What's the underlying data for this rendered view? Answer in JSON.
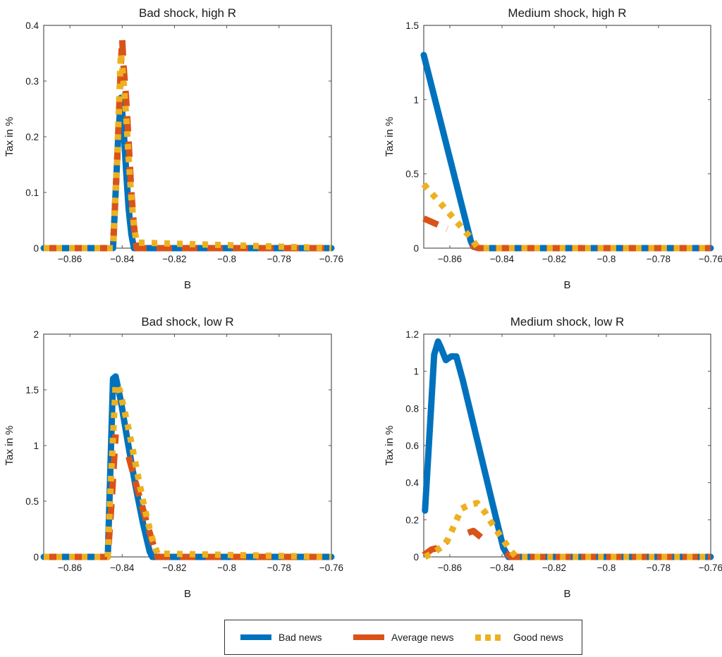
{
  "colors": {
    "bad": "#0072BD",
    "average": "#D95319",
    "good": "#EDB120",
    "axis": "#555555"
  },
  "legend": {
    "items": [
      {
        "label": "Bad news",
        "key": "bad",
        "style": "solid"
      },
      {
        "label": "Average news",
        "key": "average",
        "style": "dashed"
      },
      {
        "label": "Good news",
        "key": "good",
        "style": "dotted"
      }
    ]
  },
  "chart_data": [
    {
      "type": "line",
      "title": "Bad shock, high R",
      "xlabel": "B",
      "ylabel": "Tax in %",
      "xlim": [
        -0.87,
        -0.76
      ],
      "ylim": [
        0,
        0.4
      ],
      "xticks": [
        -0.86,
        -0.84,
        -0.82,
        -0.8,
        -0.78,
        -0.76
      ],
      "xtick_labels": [
        "−0.86",
        "−0.84",
        "−0.82",
        "−0.8",
        "−0.78",
        "−0.76"
      ],
      "yticks": [
        0,
        0.1,
        0.2,
        0.3,
        0.4
      ],
      "ytick_labels": [
        "0",
        "0.1",
        "0.2",
        "0.3",
        "0.4"
      ],
      "series": [
        {
          "name": "Bad news",
          "key": "bad",
          "x": [
            -0.87,
            -0.8435,
            -0.8415,
            -0.8405,
            -0.8395,
            -0.8385,
            -0.8375,
            -0.8365,
            -0.8355,
            -0.76
          ],
          "y": [
            0,
            0,
            0.2,
            0.27,
            0.22,
            0.14,
            0.07,
            0.025,
            0,
            0
          ]
        },
        {
          "name": "Average news",
          "key": "average",
          "x": [
            -0.87,
            -0.8435,
            -0.842,
            -0.8405,
            -0.84,
            -0.8395,
            -0.8385,
            -0.8375,
            -0.8365,
            -0.8355,
            -0.8345,
            -0.76
          ],
          "y": [
            0,
            0,
            0.15,
            0.33,
            0.375,
            0.33,
            0.27,
            0.19,
            0.1,
            0.04,
            0,
            0
          ]
        },
        {
          "name": "Good news",
          "key": "good",
          "x": [
            -0.87,
            -0.8435,
            -0.842,
            -0.8405,
            -0.8395,
            -0.8385,
            -0.8375,
            -0.8365,
            -0.8355,
            -0.8345,
            -0.76
          ],
          "y": [
            0,
            0,
            0.15,
            0.35,
            0.3,
            0.24,
            0.16,
            0.09,
            0.04,
            0.01,
            0
          ]
        }
      ]
    },
    {
      "type": "line",
      "title": "Medium shock, high R",
      "xlabel": "B",
      "ylabel": "Tax in %",
      "xlim": [
        -0.87,
        -0.76
      ],
      "ylim": [
        0,
        1.5
      ],
      "xticks": [
        -0.86,
        -0.84,
        -0.82,
        -0.8,
        -0.78,
        -0.76
      ],
      "xtick_labels": [
        "−0.86",
        "−0.84",
        "−0.82",
        "−0.8",
        "−0.78",
        "−0.76"
      ],
      "yticks": [
        0,
        0.5,
        1,
        1.5
      ],
      "ytick_labels": [
        "0",
        "0.5",
        "1",
        "1.5"
      ],
      "series": [
        {
          "name": "Bad news",
          "key": "bad",
          "x": [
            -0.87,
            -0.852,
            -0.851,
            -0.849,
            -0.76
          ],
          "y": [
            1.3,
            0.05,
            0.01,
            0,
            0
          ]
        },
        {
          "name": "Average news",
          "key": "average",
          "x": [
            -0.87,
            -0.861,
            null,
            -0.852,
            -0.849,
            -0.76
          ],
          "y": [
            0.2,
            0.13,
            null,
            0.02,
            0,
            0
          ]
        },
        {
          "name": "Good news",
          "key": "good",
          "x": [
            -0.87,
            -0.8525,
            -0.8495,
            -0.848,
            -0.76
          ],
          "y": [
            0.43,
            0.08,
            0.01,
            0,
            0
          ]
        }
      ]
    },
    {
      "type": "line",
      "title": "Bad shock, low R",
      "xlabel": "B",
      "ylabel": "Tax in %",
      "xlim": [
        -0.87,
        -0.76
      ],
      "ylim": [
        0,
        2
      ],
      "xticks": [
        -0.86,
        -0.84,
        -0.82,
        -0.8,
        -0.78,
        -0.76
      ],
      "xtick_labels": [
        "−0.86",
        "−0.84",
        "−0.82",
        "−0.8",
        "−0.78",
        "−0.76"
      ],
      "yticks": [
        0,
        0.5,
        1,
        1.5,
        2
      ],
      "ytick_labels": [
        "0",
        "0.5",
        "1",
        "1.5",
        "2"
      ],
      "series": [
        {
          "name": "Bad news",
          "key": "bad",
          "x": [
            -0.87,
            -0.8455,
            -0.8435,
            -0.8425,
            -0.8405,
            -0.838,
            -0.835,
            -0.832,
            -0.8295,
            -0.8285,
            -0.76
          ],
          "y": [
            0,
            0,
            1.6,
            1.62,
            1.4,
            1.05,
            0.65,
            0.3,
            0.05,
            0,
            0
          ]
        },
        {
          "name": "Average news",
          "key": "average",
          "x": [
            -0.87,
            -0.8455,
            -0.844,
            -0.8425,
            null,
            -0.8375,
            -0.8335,
            -0.8305,
            -0.828,
            -0.8265,
            -0.76
          ],
          "y": [
            0,
            0,
            0.5,
            1.1,
            null,
            0.9,
            0.55,
            0.3,
            0.1,
            0,
            0
          ]
        },
        {
          "name": "Good news",
          "key": "good",
          "x": [
            -0.87,
            -0.8455,
            -0.8445,
            -0.8425,
            -0.841,
            -0.838,
            -0.835,
            -0.832,
            -0.829,
            -0.8265,
            -0.76
          ],
          "y": [
            0,
            0,
            0.6,
            1.55,
            1.5,
            1.2,
            0.85,
            0.5,
            0.2,
            0.03,
            0
          ]
        }
      ]
    },
    {
      "type": "line",
      "title": "Medium shock, low R",
      "xlabel": "B",
      "ylabel": "Tax in %",
      "xlim": [
        -0.87,
        -0.76
      ],
      "ylim": [
        0,
        1.2
      ],
      "xticks": [
        -0.86,
        -0.84,
        -0.82,
        -0.8,
        -0.78,
        -0.76
      ],
      "xtick_labels": [
        "−0.86",
        "−0.84",
        "−0.82",
        "−0.8",
        "−0.78",
        "−0.76"
      ],
      "yticks": [
        0,
        0.2,
        0.4,
        0.6,
        0.8,
        1,
        1.2
      ],
      "ytick_labels": [
        "0",
        "0.2",
        "0.4",
        "0.6",
        "0.8",
        "1",
        "1.2"
      ],
      "series": [
        {
          "name": "Bad news",
          "key": "bad",
          "x": [
            -0.8695,
            -0.866,
            -0.8645,
            -0.8635,
            -0.8615,
            -0.8595,
            -0.8575,
            -0.855,
            -0.849,
            -0.843,
            -0.8395,
            -0.8375,
            -0.76
          ],
          "y": [
            0.25,
            1.09,
            1.16,
            1.13,
            1.06,
            1.08,
            1.08,
            0.95,
            0.6,
            0.25,
            0.05,
            0,
            0
          ]
        },
        {
          "name": "Average news",
          "key": "average",
          "x": [
            -0.87,
            -0.867,
            -0.864,
            -0.8615,
            null,
            -0.853,
            -0.851,
            -0.8475,
            null,
            -0.8385,
            -0.8365,
            -0.76
          ],
          "y": [
            0.01,
            0.04,
            0.05,
            0.08,
            null,
            0.13,
            0.14,
            0.1,
            null,
            0.02,
            0,
            0
          ]
        },
        {
          "name": "Good news",
          "key": "good",
          "x": [
            -0.8695,
            -0.8665,
            -0.8615,
            -0.858,
            -0.8555,
            -0.8525,
            -0.8495,
            -0.8465,
            -0.843,
            -0.8395,
            -0.8365,
            -0.8345,
            -0.76
          ],
          "y": [
            0,
            0.02,
            0.07,
            0.18,
            0.26,
            0.28,
            0.29,
            0.24,
            0.16,
            0.09,
            0.03,
            0,
            0
          ]
        }
      ]
    }
  ]
}
